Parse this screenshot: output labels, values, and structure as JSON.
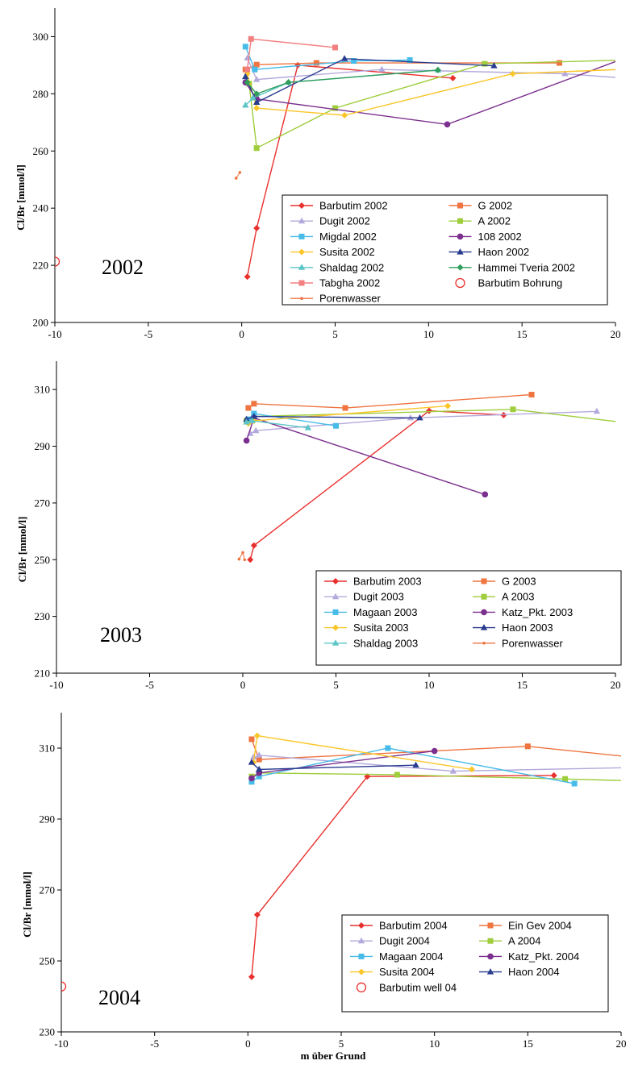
{
  "figure": {
    "xlabel": "m über Grund"
  },
  "colors": {
    "Barbutim": "#e8312e",
    "G": "#ef7440",
    "Dugit": "#b4a9dc",
    "A": "#9fcd3b",
    "Migdal": "#47bce8",
    "p108": "#7b2f8e",
    "Susita": "#fbc629",
    "Haon": "#283b8f",
    "Shaldag": "#5cc6c7",
    "Hammei": "#2f9e5b",
    "Tabgha": "#f28080",
    "Porenwasser": "#ef7440",
    "Bohrung": "#e8312e"
  },
  "chart_data": [
    {
      "type": "line",
      "year_label": "2002",
      "ylabel": "Cl/Br [mmol/l]",
      "xlim": [
        -10,
        20
      ],
      "ylim": [
        200,
        310
      ],
      "xticks": [
        -10,
        -5,
        0,
        5,
        10,
        15,
        20
      ],
      "yticks": [
        200,
        220,
        240,
        260,
        280,
        300
      ],
      "series": [
        {
          "name": "Barbutim 2002",
          "color": "#e8312e",
          "marker": "diamond",
          "points": [
            [
              0.3,
              216
            ],
            [
              0.8,
              233
            ],
            [
              3,
              290
            ],
            [
              11.3,
              285.5
            ]
          ]
        },
        {
          "name": "G 2002",
          "color": "#ef7440",
          "marker": "square",
          "points": [
            [
              0.2,
              288.5
            ],
            [
              0.8,
              290.2
            ],
            [
              4,
              290.8
            ],
            [
              17,
              290.8
            ]
          ]
        },
        {
          "name": "Dugit 2002",
          "color": "#b4a9dc",
          "marker": "triangle",
          "points": [
            [
              0.3,
              292.5
            ],
            [
              0.8,
              285
            ],
            [
              7.5,
              288.5
            ],
            [
              17.3,
              287
            ],
            [
              20.5,
              285.5
            ]
          ]
        },
        {
          "name": "A 2002",
          "color": "#9fcd3b",
          "marker": "square",
          "points": [
            [
              0.4,
              283.5
            ],
            [
              0.8,
              261
            ],
            [
              5,
              275
            ],
            [
              13,
              290.5
            ],
            [
              20.5,
              291.8
            ]
          ]
        },
        {
          "name": "Migdal 2002",
          "color": "#47bce8",
          "marker": "square",
          "points": [
            [
              0.2,
              296.5
            ],
            [
              0.7,
              288.5
            ],
            [
              6,
              291.5
            ],
            [
              9,
              291.8
            ]
          ]
        },
        {
          "name": "108 2002",
          "color": "#7b2f8e",
          "marker": "circle",
          "points": [
            [
              0.2,
              284
            ],
            [
              0.8,
              278.2
            ],
            [
              11,
              269.3
            ],
            [
              20.3,
              292
            ]
          ]
        },
        {
          "name": "Susita 2002",
          "color": "#fbc629",
          "marker": "diamond",
          "points": [
            [
              0.3,
              287
            ],
            [
              0.8,
              275
            ],
            [
              5.5,
              272.5
            ],
            [
              14.5,
              287
            ],
            [
              20.2,
              288.5
            ]
          ]
        },
        {
          "name": "Haon 2002",
          "color": "#283b8f",
          "marker": "triangle",
          "points": [
            [
              0.2,
              286
            ],
            [
              0.8,
              277
            ],
            [
              5.5,
              292.3
            ],
            [
              13.5,
              289.8
            ]
          ]
        },
        {
          "name": "Shaldag 2002",
          "color": "#5cc6c7",
          "marker": "triangle",
          "points": [
            [
              0.2,
              276
            ],
            [
              0.6,
              278.5
            ],
            [
              2.5,
              284
            ],
            [
              10.5,
              288.3
            ]
          ]
        },
        {
          "name": "Hammei Tveria 2002",
          "color": "#2f9e5b",
          "marker": "diamond",
          "points": [
            [
              0.3,
              284
            ],
            [
              0.8,
              280
            ],
            [
              2.5,
              284
            ],
            [
              10.5,
              288.3
            ]
          ]
        },
        {
          "name": "Tabgha 2002",
          "color": "#f28080",
          "marker": "square",
          "points": [
            [
              0.3,
              288.5
            ],
            [
              0.5,
              299.2
            ],
            [
              5,
              296.2
            ]
          ]
        },
        {
          "name": "Barbutim Bohrung",
          "color": "#e8312e",
          "marker": "open-circle",
          "nolines": true,
          "points": [
            [
              -10,
              221.3
            ]
          ]
        },
        {
          "name": "Porenwasser",
          "color": "#ef7440",
          "marker": "dot",
          "points": [
            [
              -0.3,
              250.5
            ],
            [
              -0.1,
              252.5
            ]
          ]
        }
      ]
    },
    {
      "type": "line",
      "year_label": "2003",
      "ylabel": "Cl/Br [mmol/l]",
      "xlim": [
        -10,
        20
      ],
      "ylim": [
        210,
        320
      ],
      "xticks": [
        -10,
        -5,
        0,
        5,
        10,
        15,
        20
      ],
      "yticks": [
        210,
        230,
        250,
        270,
        290,
        310
      ],
      "series": [
        {
          "name": "Barbutim 2003",
          "color": "#e8312e",
          "marker": "diamond",
          "points": [
            [
              0.4,
              250
            ],
            [
              0.6,
              255
            ],
            [
              10,
              302.5
            ],
            [
              14,
              301
            ]
          ]
        },
        {
          "name": "G 2003",
          "color": "#ef7440",
          "marker": "square",
          "points": [
            [
              0.3,
              303.5
            ],
            [
              0.6,
              305
            ],
            [
              5.5,
              303.5
            ],
            [
              15.5,
              308.2
            ]
          ]
        },
        {
          "name": "Dugit 2003",
          "color": "#b4a9dc",
          "marker": "triangle",
          "points": [
            [
              0.4,
              294.5
            ],
            [
              0.7,
              295.5
            ],
            [
              9,
              300
            ],
            [
              19,
              302.3
            ]
          ]
        },
        {
          "name": "A 2003",
          "color": "#9fcd3b",
          "marker": "square",
          "points": [
            [
              0.2,
              299
            ],
            [
              0.6,
              300.5
            ],
            [
              14.5,
              303
            ],
            [
              20.3,
              298.5
            ]
          ]
        },
        {
          "name": "Magaan 2003",
          "color": "#47bce8",
          "marker": "square",
          "points": [
            [
              0.3,
              299.5
            ],
            [
              0.6,
              301.5
            ],
            [
              5,
              297.2
            ]
          ]
        },
        {
          "name": "Katz_Pkt. 2003",
          "color": "#7b2f8e",
          "marker": "circle",
          "points": [
            [
              0.2,
              292
            ],
            [
              0.6,
              300
            ],
            [
              13,
              273
            ]
          ]
        },
        {
          "name": "Susita 2003",
          "color": "#fbc629",
          "marker": "diamond",
          "points": [
            [
              0.3,
              298
            ],
            [
              0.6,
              299
            ],
            [
              11,
              304.2
            ]
          ]
        },
        {
          "name": "Haon 2003",
          "color": "#283b8f",
          "marker": "triangle",
          "points": [
            [
              0.2,
              299.5
            ],
            [
              0.6,
              300.5
            ],
            [
              9.5,
              300
            ]
          ]
        },
        {
          "name": "Shaldag 2003",
          "color": "#5cc6c7",
          "marker": "triangle",
          "points": [
            [
              0.2,
              298.5
            ],
            [
              0.5,
              299
            ],
            [
              3.5,
              296.5
            ]
          ]
        },
        {
          "name": "Porenwasser",
          "color": "#ef7440",
          "marker": "dot",
          "points": [
            [
              -0.2,
              250.2
            ],
            [
              0,
              252.5
            ],
            [
              0.1,
              250
            ]
          ]
        }
      ]
    },
    {
      "type": "line",
      "year_label": "2004",
      "ylabel": "Cl/Br [mmol/l]",
      "xlim": [
        -10,
        20
      ],
      "ylim": [
        230,
        320
      ],
      "xticks": [
        -10,
        -5,
        0,
        5,
        10,
        15,
        20
      ],
      "yticks": [
        230,
        250,
        270,
        290,
        310
      ],
      "series": [
        {
          "name": "Barbutim 2004",
          "color": "#e8312e",
          "marker": "diamond",
          "points": [
            [
              0.2,
              245.5
            ],
            [
              0.5,
              263
            ],
            [
              6.4,
              302
            ],
            [
              16.4,
              302.3
            ]
          ]
        },
        {
          "name": "Ein Gev 2004",
          "color": "#ef7440",
          "marker": "square",
          "points": [
            [
              0.2,
              312.5
            ],
            [
              0.6,
              306.8
            ],
            [
              15,
              310.5
            ],
            [
              20.5,
              307.5
            ]
          ]
        },
        {
          "name": "Dugit 2004",
          "color": "#b4a9dc",
          "marker": "triangle",
          "points": [
            [
              0.3,
              307.5
            ],
            [
              0.6,
              308
            ],
            [
              11,
              303.5
            ],
            [
              20.5,
              304.5
            ]
          ]
        },
        {
          "name": "A 2004",
          "color": "#9fcd3b",
          "marker": "square",
          "points": [
            [
              0.2,
              302
            ],
            [
              0.6,
              303
            ],
            [
              8,
              302.5
            ],
            [
              17,
              301.3
            ],
            [
              20.5,
              300.8
            ]
          ]
        },
        {
          "name": "Magaan 2004",
          "color": "#47bce8",
          "marker": "square",
          "points": [
            [
              0.2,
              300.5
            ],
            [
              0.6,
              302
            ],
            [
              7.5,
              310
            ],
            [
              17.5,
              300
            ]
          ]
        },
        {
          "name": "Katz_Pkt. 2004",
          "color": "#7b2f8e",
          "marker": "circle",
          "points": [
            [
              0.2,
              301.5
            ],
            [
              0.6,
              303
            ],
            [
              10,
              309.2
            ]
          ]
        },
        {
          "name": "Susita 2004",
          "color": "#fbc629",
          "marker": "diamond",
          "points": [
            [
              0.3,
              306
            ],
            [
              0.5,
              313.5
            ],
            [
              12,
              304
            ]
          ]
        },
        {
          "name": "Haon 2004",
          "color": "#283b8f",
          "marker": "triangle",
          "points": [
            [
              0.2,
              306
            ],
            [
              0.6,
              304
            ],
            [
              9,
              305.2
            ]
          ]
        },
        {
          "name": "Barbutim well 04",
          "color": "#e8312e",
          "marker": "open-circle",
          "nolines": true,
          "points": [
            [
              -10,
              242.8
            ]
          ]
        }
      ]
    }
  ]
}
